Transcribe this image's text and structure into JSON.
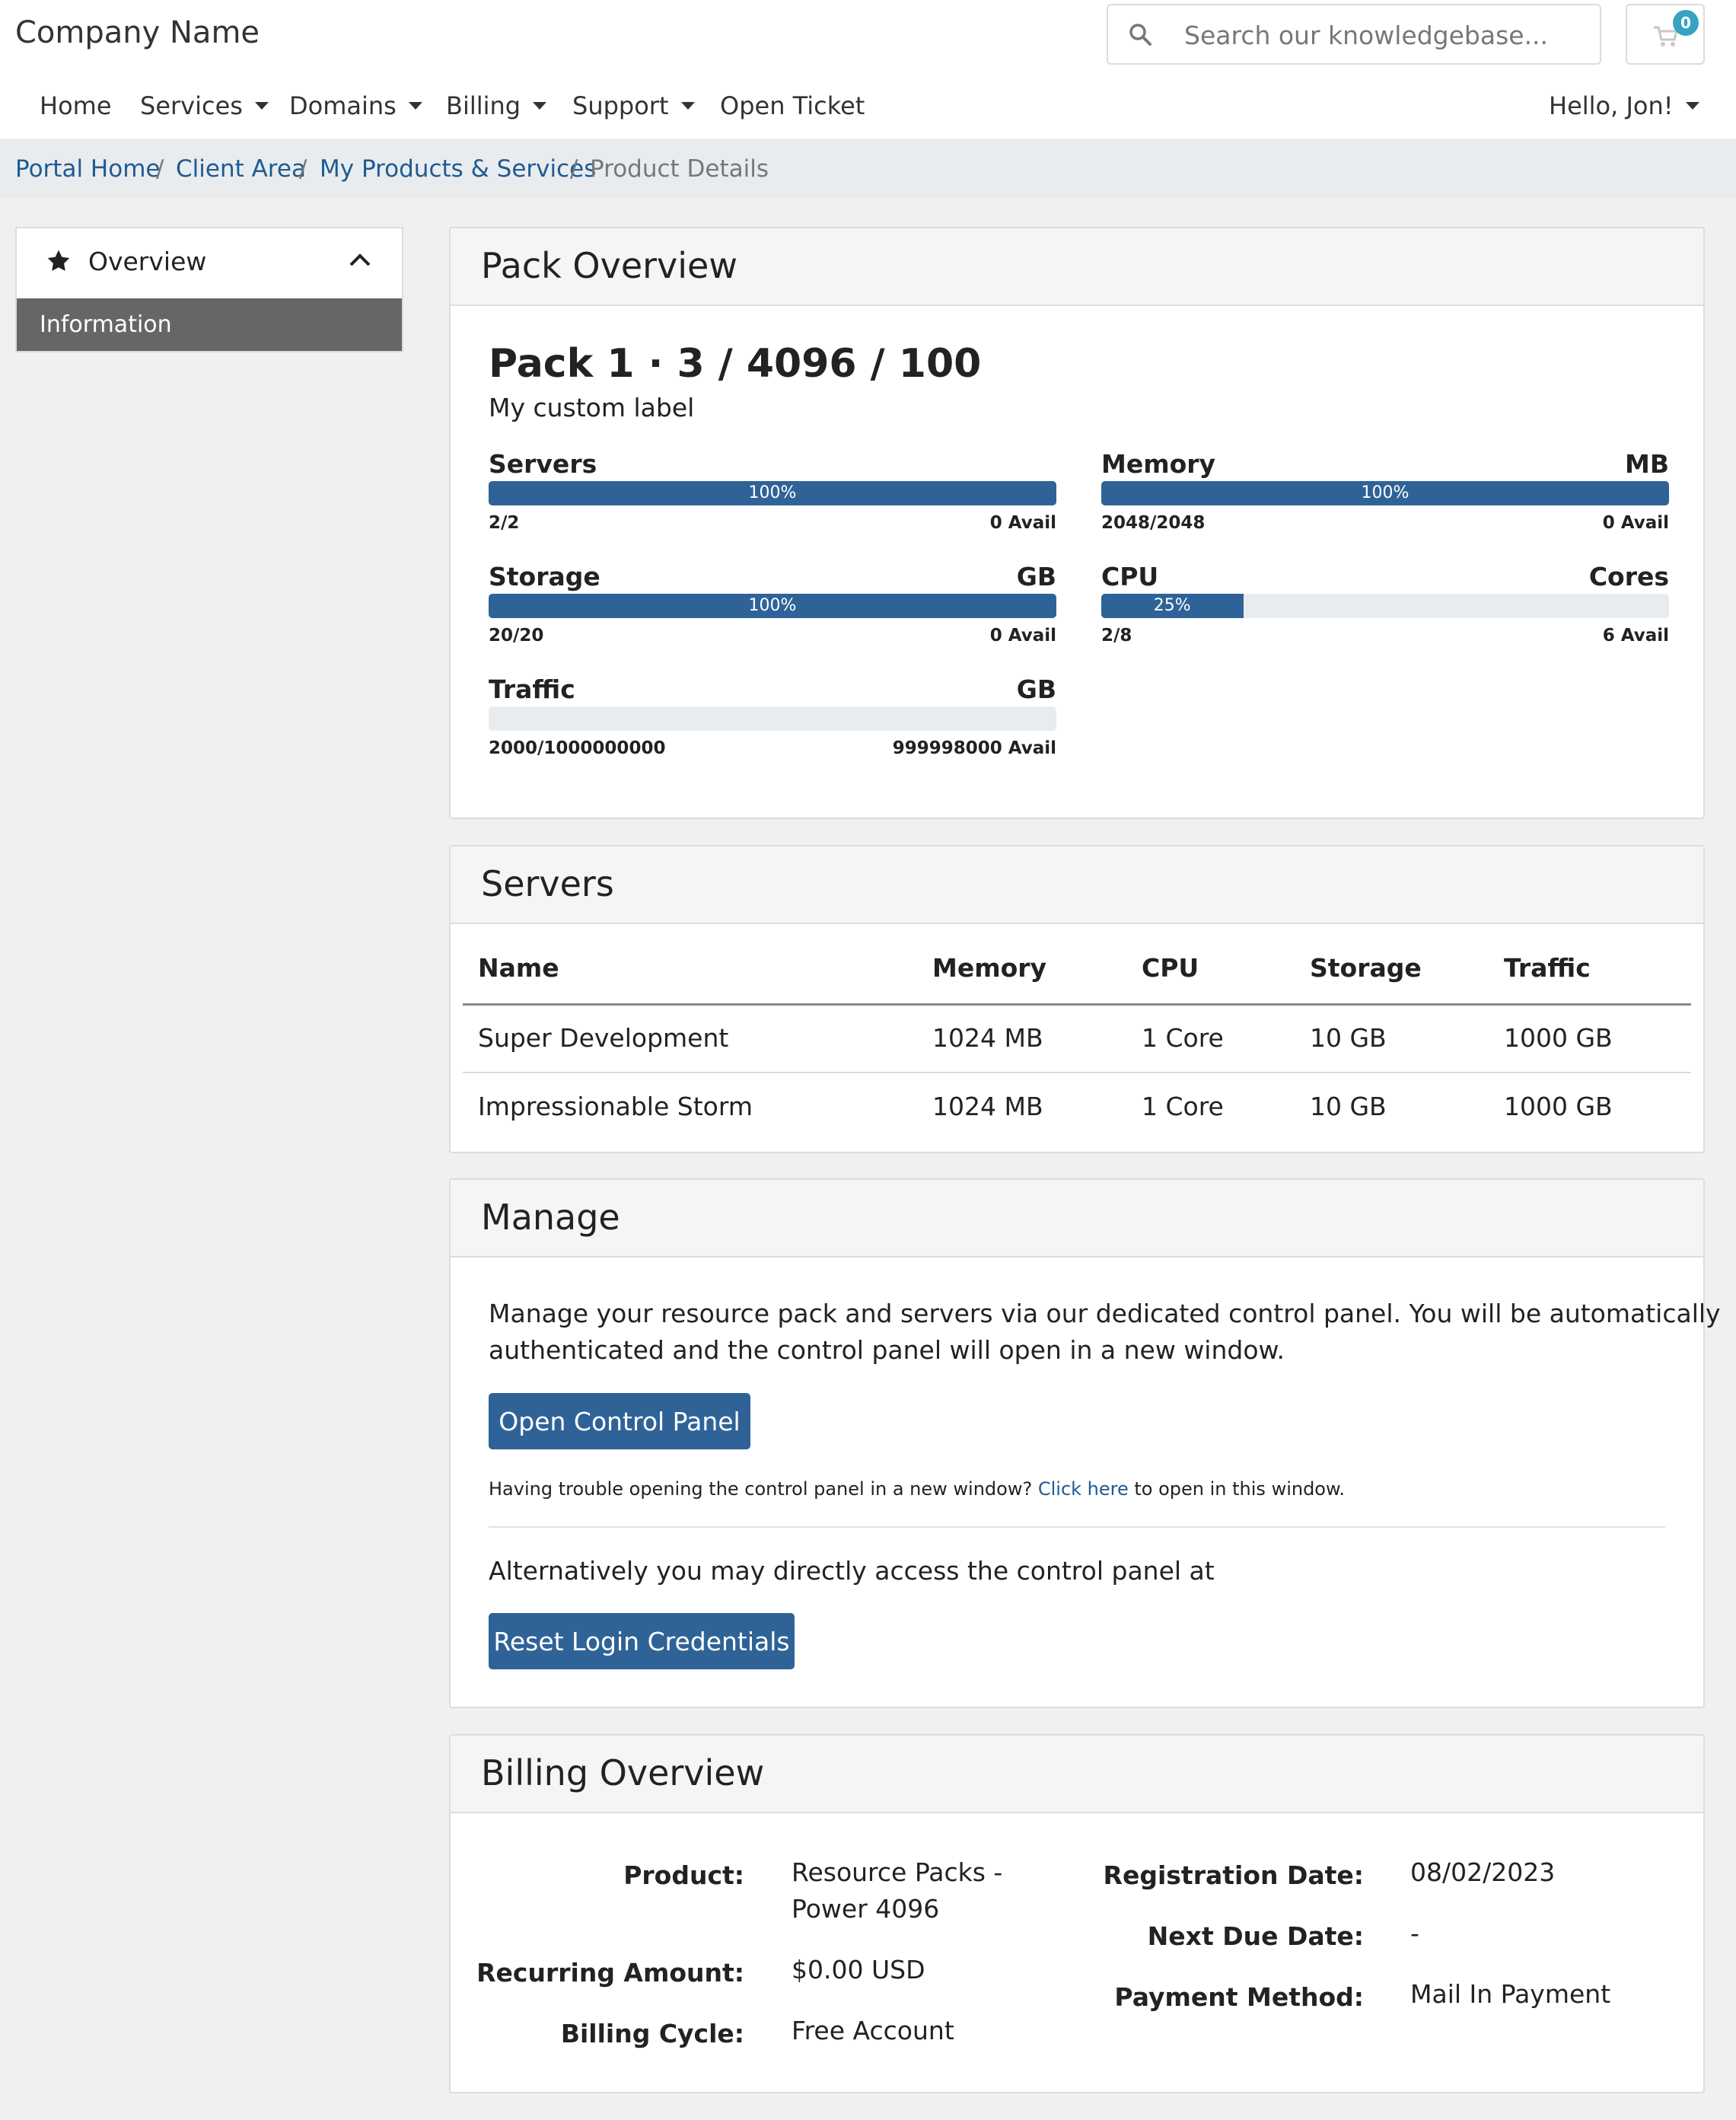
{
  "header": {
    "brand": "Company Name",
    "search_placeholder": "Search our knowledgebase...",
    "cart_count": "0",
    "nav": [
      "Home",
      "Services",
      "Domains",
      "Billing",
      "Support",
      "Open Ticket"
    ],
    "user_menu": "Hello, Jon!"
  },
  "breadcrumb": {
    "items": [
      "Portal Home",
      "Client Area",
      "My Products & Services",
      "Product Details"
    ],
    "separator": "/"
  },
  "sidebar": {
    "title": "Overview",
    "items": [
      {
        "label": "Information",
        "active": true
      }
    ]
  },
  "pack_overview": {
    "heading": "Pack Overview",
    "title": "Pack 1 · 3 / 4096 / 100",
    "label": "My custom label",
    "gauges": [
      {
        "name": "Servers",
        "unit": "",
        "percent": 100,
        "percent_text": "100%",
        "count": "2/2",
        "avail": "0 Avail"
      },
      {
        "name": "Memory",
        "unit": "MB",
        "percent": 100,
        "percent_text": "100%",
        "count": "2048/2048",
        "avail": "0 Avail"
      },
      {
        "name": "Storage",
        "unit": "GB",
        "percent": 100,
        "percent_text": "100%",
        "count": "20/20",
        "avail": "0 Avail"
      },
      {
        "name": "CPU",
        "unit": "Cores",
        "percent": 25,
        "percent_text": "25%",
        "count": "2/8",
        "avail": "6 Avail"
      },
      {
        "name": "Traffic",
        "unit": "GB",
        "percent": 0,
        "percent_text": "",
        "count": "2000/1000000000",
        "avail": "999998000 Avail"
      }
    ]
  },
  "servers": {
    "heading": "Servers",
    "columns": [
      "Name",
      "Memory",
      "CPU",
      "Storage",
      "Traffic"
    ],
    "rows": [
      [
        "Super Development",
        "1024 MB",
        "1 Core",
        "10 GB",
        "1000 GB"
      ],
      [
        "Impressionable Storm",
        "1024 MB",
        "1 Core",
        "10 GB",
        "1000 GB"
      ]
    ]
  },
  "manage": {
    "heading": "Manage",
    "description_line1": "Manage your resource pack and servers via our dedicated control panel. You will be automatically",
    "description_line2": "authenticated and the control panel will open in a new window.",
    "open_button": "Open Control Panel",
    "trouble_text": "Having trouble opening the control panel in a new window?",
    "click_here": "Click here",
    "trouble_suffix": "to open in this window.",
    "alternative_text": "Alternatively you may directly access the control panel at",
    "reset_button": "Reset Login Credentials"
  },
  "billing": {
    "heading": "Billing Overview",
    "product_label": "Product:",
    "product_line1": "Resource Packs -",
    "product_line2": "Power 4096",
    "recurring_label": "Recurring Amount:",
    "recurring_value": "$0.00 USD",
    "cycle_label": "Billing Cycle:",
    "cycle_value": "Free Account",
    "reg_label": "Registration Date:",
    "reg_value": "08/02/2023",
    "due_label": "Next Due Date:",
    "due_value": "-",
    "payment_label": "Payment Method:",
    "payment_value": "Mail In Payment"
  },
  "colors": {
    "primary": "#2f6398",
    "link": "#1f5b92",
    "badge": "#36a3c2",
    "sidebar_active": "#666666"
  }
}
